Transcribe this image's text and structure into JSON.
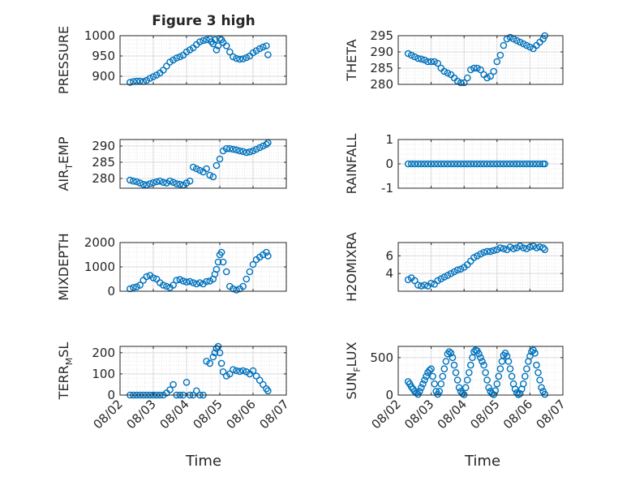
{
  "figure": {
    "title": "Figure 3 high",
    "xlabel": "Time"
  },
  "colors": {
    "marker": "#0072bd",
    "axis": "#262626",
    "grid": "#d9d9d9",
    "minor_grid": "#e6e6e6"
  },
  "chart_data": [
    {
      "type": "scatter",
      "id": "pressure",
      "ylabel": "PRESSURE",
      "ylim": [
        880,
        1000
      ],
      "yticks": [
        900,
        950,
        1000
      ],
      "yticklabels": [
        "900",
        "950",
        "1000"
      ],
      "xlim": [
        0,
        5
      ],
      "xticks": [
        0,
        1,
        2,
        3,
        4,
        5
      ],
      "xticklabels": [
        "08/02",
        "08/03",
        "08/04",
        "08/05",
        "08/06",
        "08/07"
      ],
      "show_xticklabels": false,
      "x": [
        0.3,
        0.4,
        0.5,
        0.6,
        0.7,
        0.8,
        0.9,
        1.0,
        1.1,
        1.2,
        1.3,
        1.4,
        1.5,
        1.6,
        1.7,
        1.8,
        1.9,
        2.0,
        2.1,
        2.2,
        2.3,
        2.4,
        2.5,
        2.6,
        2.7,
        2.75,
        2.8,
        2.85,
        2.9,
        2.95,
        3.0,
        3.05,
        3.1,
        3.2,
        3.3,
        3.4,
        3.5,
        3.6,
        3.7,
        3.8,
        3.9,
        4.0,
        4.1,
        4.2,
        4.3,
        4.4,
        4.45
      ],
      "y": [
        885,
        887,
        888,
        888,
        887,
        890,
        895,
        899,
        903,
        908,
        915,
        925,
        935,
        940,
        945,
        948,
        952,
        960,
        965,
        970,
        978,
        985,
        988,
        990,
        992,
        985,
        980,
        990,
        965,
        975,
        993,
        990,
        983,
        975,
        960,
        948,
        944,
        942,
        943,
        946,
        950,
        958,
        963,
        968,
        972,
        975,
        953
      ]
    },
    {
      "type": "scatter",
      "id": "theta",
      "ylabel": "THETA",
      "ylim": [
        280,
        295
      ],
      "yticks": [
        280,
        285,
        290,
        295
      ],
      "yticklabels": [
        "280",
        "285",
        "290",
        "295"
      ],
      "xlim": [
        0,
        5
      ],
      "xticks": [
        0,
        1,
        2,
        3,
        4,
        5
      ],
      "xticklabels": [
        "08/02",
        "08/03",
        "08/04",
        "08/05",
        "08/06",
        "08/07"
      ],
      "show_xticklabels": false,
      "x": [
        0.3,
        0.4,
        0.5,
        0.6,
        0.7,
        0.8,
        0.9,
        1.0,
        1.1,
        1.2,
        1.3,
        1.4,
        1.5,
        1.6,
        1.7,
        1.8,
        1.9,
        2.0,
        2.1,
        2.2,
        2.3,
        2.4,
        2.5,
        2.6,
        2.7,
        2.8,
        2.9,
        3.0,
        3.1,
        3.2,
        3.3,
        3.4,
        3.5,
        3.6,
        3.7,
        3.8,
        3.9,
        4.0,
        4.1,
        4.2,
        4.3,
        4.4,
        4.45
      ],
      "y": [
        289.5,
        289,
        288.5,
        288,
        287.8,
        287.5,
        287,
        287,
        287,
        286.5,
        285,
        284,
        283.5,
        283,
        282,
        281,
        280.5,
        280.5,
        282,
        284.5,
        285,
        285,
        284.5,
        283,
        282,
        282.5,
        284,
        287,
        289,
        292,
        294,
        294.5,
        294,
        293.5,
        293,
        292.5,
        292,
        291.5,
        291,
        292,
        293,
        294,
        295
      ]
    },
    {
      "type": "scatter",
      "id": "air_temp",
      "ylabel": "AIR_TEMP",
      "ylim": [
        277,
        292
      ],
      "yticks": [
        280,
        285,
        290
      ],
      "yticklabels": [
        "280",
        "285",
        "290"
      ],
      "xlim": [
        0,
        5
      ],
      "xticks": [
        0,
        1,
        2,
        3,
        4,
        5
      ],
      "xticklabels": [
        "08/02",
        "08/03",
        "08/04",
        "08/05",
        "08/06",
        "08/07"
      ],
      "show_xticklabels": false,
      "x": [
        0.3,
        0.4,
        0.5,
        0.6,
        0.7,
        0.8,
        0.9,
        1.0,
        1.1,
        1.2,
        1.3,
        1.4,
        1.5,
        1.6,
        1.7,
        1.8,
        1.9,
        2.0,
        2.1,
        2.2,
        2.3,
        2.4,
        2.5,
        2.6,
        2.7,
        2.8,
        2.9,
        3.0,
        3.1,
        3.2,
        3.3,
        3.4,
        3.5,
        3.6,
        3.7,
        3.8,
        3.9,
        4.0,
        4.1,
        4.2,
        4.3,
        4.4,
        4.45
      ],
      "y": [
        279.5,
        279.2,
        279,
        278.6,
        278.2,
        278,
        278.4,
        278.7,
        279,
        279.2,
        278.8,
        278.6,
        279.2,
        278.8,
        278.4,
        278.2,
        278,
        278.6,
        279.2,
        283.5,
        283,
        282.5,
        282,
        283,
        281,
        280.5,
        284,
        286,
        288.5,
        289.2,
        289.2,
        289,
        288.8,
        288.5,
        288.3,
        288,
        288.2,
        288.5,
        289,
        289.5,
        290,
        290.5,
        291
      ]
    },
    {
      "type": "scatter",
      "id": "rainfall",
      "ylabel": "RAINFALL",
      "ylim": [
        -1,
        1
      ],
      "yticks": [
        -1,
        0,
        1
      ],
      "yticklabels": [
        "-1",
        "0",
        "1"
      ],
      "xlim": [
        0,
        5
      ],
      "xticks": [
        0,
        1,
        2,
        3,
        4,
        5
      ],
      "xticklabels": [
        "08/02",
        "08/03",
        "08/04",
        "08/05",
        "08/06",
        "08/07"
      ],
      "show_xticklabels": false,
      "x": [
        0.3,
        0.4,
        0.5,
        0.6,
        0.7,
        0.8,
        0.9,
        1.0,
        1.1,
        1.2,
        1.3,
        1.4,
        1.5,
        1.6,
        1.7,
        1.8,
        1.9,
        2.0,
        2.1,
        2.2,
        2.3,
        2.4,
        2.5,
        2.6,
        2.7,
        2.8,
        2.9,
        3.0,
        3.1,
        3.2,
        3.3,
        3.4,
        3.5,
        3.6,
        3.7,
        3.8,
        3.9,
        4.0,
        4.1,
        4.2,
        4.3,
        4.4,
        4.45
      ],
      "y": [
        0,
        0,
        0,
        0,
        0,
        0,
        0,
        0,
        0,
        0,
        0,
        0,
        0,
        0,
        0,
        0,
        0,
        0,
        0,
        0,
        0,
        0,
        0,
        0,
        0,
        0,
        0,
        0,
        0,
        0,
        0,
        0,
        0,
        0,
        0,
        0,
        0,
        0,
        0,
        0,
        0,
        0,
        0
      ]
    },
    {
      "type": "scatter",
      "id": "mixdepth",
      "ylabel": "MIXDEPTH",
      "ylim": [
        0,
        2000
      ],
      "yticks": [
        0,
        1000,
        2000
      ],
      "yticklabels": [
        "0",
        "1000",
        "2000"
      ],
      "xlim": [
        0,
        5
      ],
      "xticks": [
        0,
        1,
        2,
        3,
        4,
        5
      ],
      "xticklabels": [
        "08/02",
        "08/03",
        "08/04",
        "08/05",
        "08/06",
        "08/07"
      ],
      "show_xticklabels": false,
      "x": [
        0.3,
        0.4,
        0.5,
        0.6,
        0.7,
        0.8,
        0.9,
        1.0,
        1.1,
        1.2,
        1.3,
        1.4,
        1.5,
        1.6,
        1.7,
        1.8,
        1.9,
        2.0,
        2.1,
        2.2,
        2.3,
        2.4,
        2.5,
        2.6,
        2.7,
        2.8,
        2.85,
        2.9,
        2.95,
        3.0,
        3.05,
        3.1,
        3.2,
        3.3,
        3.4,
        3.5,
        3.6,
        3.7,
        3.8,
        3.9,
        4.0,
        4.1,
        4.2,
        4.3,
        4.4,
        4.45
      ],
      "y": [
        100,
        150,
        180,
        250,
        450,
        600,
        650,
        550,
        500,
        350,
        250,
        200,
        150,
        250,
        450,
        480,
        420,
        380,
        400,
        350,
        300,
        350,
        300,
        400,
        420,
        500,
        700,
        900,
        1200,
        1500,
        1600,
        1200,
        800,
        200,
        100,
        50,
        100,
        200,
        500,
        800,
        1100,
        1300,
        1400,
        1500,
        1600,
        1450
      ]
    },
    {
      "type": "scatter",
      "id": "h2omixra",
      "ylabel": "H2OMIXRA",
      "ylim": [
        2,
        7.5
      ],
      "yticks": [
        4,
        6
      ],
      "yticklabels": [
        "4",
        "6"
      ],
      "xlim": [
        0,
        5
      ],
      "xticks": [
        0,
        1,
        2,
        3,
        4,
        5
      ],
      "xticklabels": [
        "08/02",
        "08/03",
        "08/04",
        "08/05",
        "08/06",
        "08/07"
      ],
      "show_xticklabels": false,
      "x": [
        0.3,
        0.4,
        0.5,
        0.6,
        0.7,
        0.8,
        0.9,
        1.0,
        1.1,
        1.2,
        1.3,
        1.4,
        1.5,
        1.6,
        1.7,
        1.8,
        1.9,
        2.0,
        2.1,
        2.2,
        2.3,
        2.4,
        2.5,
        2.6,
        2.7,
        2.8,
        2.9,
        3.0,
        3.1,
        3.2,
        3.3,
        3.4,
        3.5,
        3.6,
        3.7,
        3.8,
        3.9,
        4.0,
        4.1,
        4.2,
        4.3,
        4.4,
        4.45
      ],
      "y": [
        3.3,
        3.5,
        3.2,
        2.7,
        2.6,
        2.7,
        2.6,
        2.9,
        2.8,
        3.2,
        3.4,
        3.6,
        3.8,
        4.0,
        4.2,
        4.4,
        4.5,
        4.7,
        5.0,
        5.4,
        5.8,
        6.0,
        6.2,
        6.4,
        6.5,
        6.5,
        6.6,
        6.7,
        6.9,
        6.8,
        6.7,
        7.0,
        6.8,
        6.9,
        7.1,
        6.9,
        6.8,
        7.0,
        7.1,
        6.9,
        7.0,
        6.9,
        6.7
      ]
    },
    {
      "type": "scatter",
      "id": "terr_msl",
      "ylabel": "TERR_MSL",
      "ylim": [
        0,
        230
      ],
      "yticks": [
        0,
        100,
        200
      ],
      "yticklabels": [
        "0",
        "100",
        "200"
      ],
      "xlim": [
        0,
        5
      ],
      "xticks": [
        0,
        1,
        2,
        3,
        4,
        5
      ],
      "xticklabels": [
        "08/02",
        "08/03",
        "08/04",
        "08/05",
        "08/06",
        "08/07"
      ],
      "show_xticklabels": true,
      "x": [
        0.3,
        0.4,
        0.5,
        0.6,
        0.7,
        0.8,
        0.9,
        1.0,
        1.1,
        1.2,
        1.3,
        1.4,
        1.5,
        1.6,
        1.7,
        1.8,
        1.9,
        2.0,
        2.1,
        2.2,
        2.3,
        2.4,
        2.5,
        2.6,
        2.7,
        2.8,
        2.85,
        2.9,
        2.95,
        3.0,
        3.05,
        3.1,
        3.2,
        3.3,
        3.4,
        3.5,
        3.6,
        3.7,
        3.8,
        3.9,
        4.0,
        4.1,
        4.2,
        4.3,
        4.4,
        4.45
      ],
      "y": [
        0,
        0,
        0,
        0,
        0,
        0,
        0,
        0,
        0,
        0,
        0,
        10,
        25,
        50,
        0,
        0,
        0,
        60,
        0,
        0,
        20,
        0,
        0,
        160,
        150,
        180,
        200,
        220,
        230,
        200,
        150,
        110,
        90,
        100,
        120,
        115,
        112,
        115,
        110,
        100,
        115,
        90,
        70,
        50,
        30,
        20
      ]
    },
    {
      "type": "scatter",
      "id": "sun_flux",
      "ylabel": "SUN_FLUX",
      "ylim": [
        0,
        650
      ],
      "yticks": [
        0,
        500
      ],
      "yticklabels": [
        "0",
        "500"
      ],
      "xlim": [
        0,
        5
      ],
      "xticks": [
        0,
        1,
        2,
        3,
        4,
        5
      ],
      "xticklabels": [
        "08/02",
        "08/03",
        "08/04",
        "08/05",
        "08/06",
        "08/07"
      ],
      "show_xticklabels": true,
      "x": [
        0.3,
        0.35,
        0.4,
        0.45,
        0.5,
        0.55,
        0.6,
        0.65,
        0.7,
        0.75,
        0.8,
        0.85,
        0.9,
        0.95,
        1.0,
        1.05,
        1.1,
        1.15,
        1.2,
        1.25,
        1.3,
        1.35,
        1.4,
        1.45,
        1.5,
        1.55,
        1.6,
        1.65,
        1.7,
        1.75,
        1.8,
        1.85,
        1.9,
        1.95,
        2.0,
        2.05,
        2.1,
        2.15,
        2.2,
        2.25,
        2.3,
        2.35,
        2.4,
        2.45,
        2.5,
        2.55,
        2.6,
        2.65,
        2.7,
        2.75,
        2.8,
        2.85,
        2.9,
        2.95,
        3.0,
        3.05,
        3.1,
        3.15,
        3.2,
        3.25,
        3.3,
        3.35,
        3.4,
        3.45,
        3.5,
        3.55,
        3.6,
        3.65,
        3.7,
        3.75,
        3.8,
        3.85,
        3.9,
        3.95,
        4.0,
        4.05,
        4.1,
        4.15,
        4.2,
        4.25,
        4.3,
        4.35,
        4.4,
        4.45
      ],
      "y": [
        180,
        150,
        110,
        80,
        50,
        30,
        10,
        50,
        100,
        150,
        200,
        250,
        300,
        330,
        350,
        250,
        150,
        50,
        10,
        50,
        150,
        250,
        350,
        450,
        550,
        580,
        560,
        500,
        400,
        300,
        200,
        100,
        50,
        20,
        5,
        100,
        200,
        300,
        400,
        500,
        580,
        600,
        590,
        550,
        500,
        450,
        400,
        300,
        200,
        100,
        50,
        20,
        5,
        60,
        150,
        250,
        350,
        450,
        530,
        560,
        520,
        450,
        350,
        250,
        150,
        80,
        30,
        5,
        20,
        80,
        150,
        250,
        350,
        450,
        520,
        580,
        600,
        560,
        400,
        300,
        200,
        100,
        50,
        10
      ]
    }
  ]
}
